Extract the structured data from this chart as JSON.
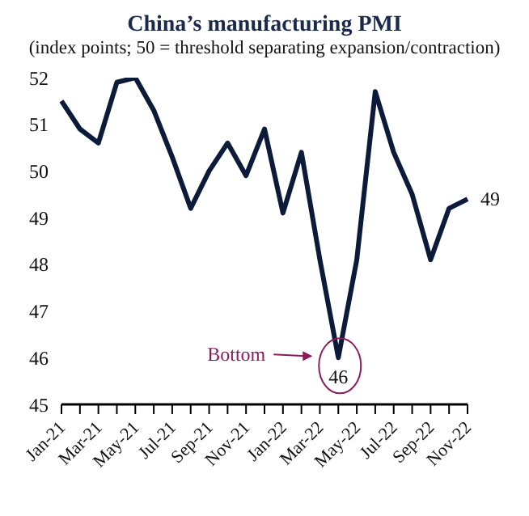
{
  "chart_data": {
    "type": "line",
    "title": "China’s manufacturing PMI",
    "subtitle": "(index points; 50 = threshold separating expansion/contraction)",
    "categories": [
      "Jan-21",
      null,
      "Mar-21",
      null,
      "May-21",
      null,
      "Jul-21",
      null,
      "Sep-21",
      null,
      "Nov-21",
      null,
      "Jan-22",
      null,
      "Mar-22",
      null,
      "May-22",
      null,
      "Jul-22",
      null,
      "Sep-22",
      null,
      "Nov-22"
    ],
    "series": [
      {
        "color": "#0d1b3a",
        "values": [
          51.5,
          50.9,
          50.6,
          51.9,
          52.0,
          51.3,
          50.3,
          49.2,
          50.0,
          50.6,
          49.9,
          50.9,
          49.1,
          50.4,
          48.1,
          46.0,
          48.1,
          51.7,
          50.4,
          49.5,
          48.1,
          49.2,
          49.4
        ],
        "value_labels": [
          null,
          null,
          null,
          null,
          null,
          null,
          null,
          null,
          null,
          null,
          null,
          null,
          null,
          null,
          null,
          "46",
          null,
          null,
          null,
          null,
          null,
          null,
          "49"
        ]
      }
    ],
    "annotations": [
      "Bottom"
    ],
    "ylim": [
      45,
      52
    ],
    "yticks": [
      45,
      46,
      47,
      48,
      49,
      50,
      51,
      52
    ],
    "grid": false,
    "legend": false,
    "marker": "none",
    "line_style": "solid"
  }
}
